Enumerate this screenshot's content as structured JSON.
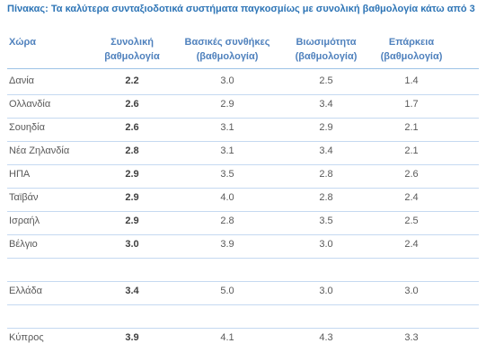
{
  "title": "Πίνακας: Τα καλύτερα συνταξιοδοτικά συστήματα παγκοσμίως με συνολική βαθμολογία κάτω από 3",
  "table": {
    "header": [
      [
        "Χώρα"
      ],
      [
        "Συνολική",
        "βαθμολογία"
      ],
      [
        "Βασικές συνθήκες",
        "(βαθμολογία)"
      ],
      [
        "Βιωσιμότητα",
        "(βαθμολογία)"
      ],
      [
        "Επάρκεια",
        "(βαθμολογία)"
      ]
    ],
    "rows": [
      [
        "Δανία",
        "2.2",
        "3.0",
        "2.5",
        "1.4"
      ],
      [
        "Ολλανδία",
        "2.6",
        "2.9",
        "3.4",
        "1.7"
      ],
      [
        "Σουηδία",
        "2.6",
        "3.1",
        "2.9",
        "2.1"
      ],
      [
        "Νέα Ζηλανδία",
        "2.8",
        "3.1",
        "3.4",
        "2.1"
      ],
      [
        "ΗΠΑ",
        "2.9",
        "3.5",
        "2.8",
        "2.6"
      ],
      [
        "Ταϊβάν",
        "2.9",
        "4.0",
        "2.8",
        "2.4"
      ],
      [
        "Ισραήλ",
        "2.9",
        "2.8",
        "3.5",
        "2.5"
      ],
      [
        "Βέλγιο",
        "3.0",
        "3.9",
        "3.0",
        "2.4"
      ],
      [
        "Ελλάδα",
        "3.4",
        "5.0",
        "3.0",
        "3.0"
      ],
      [
        "Κύπρος",
        "3.9",
        "4.1",
        "4.3",
        "3.3"
      ]
    ]
  }
}
